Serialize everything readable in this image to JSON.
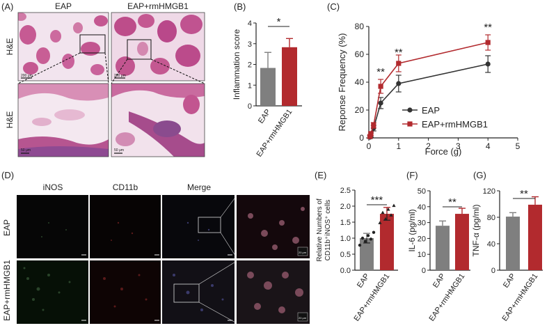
{
  "panel_labels": {
    "a": "(A)",
    "b": "(B)",
    "c": "(C)",
    "d": "(D)",
    "e": "(E)",
    "f": "(F)",
    "g": "(G)"
  },
  "panel_a": {
    "col_headers": [
      "EAP",
      "EAP+rmHMGB1"
    ],
    "row_label_top": "H&E",
    "row_label_bottom": "H&E",
    "scale_top": "200 μm",
    "scale_bottom": "50 μm"
  },
  "panel_d": {
    "col_headers": [
      "iNOS",
      "CD11b",
      "Merge"
    ],
    "row_labels": [
      "EAP",
      "EAP+rmHMGB1"
    ],
    "scale_small": "50μm",
    "scale_zoom": "20 μm"
  },
  "colors": {
    "gray_bar": "#7f7f7f",
    "red_bar": "#b22a2e",
    "eap_line": "#333333",
    "rm_line": "#b22a2e"
  },
  "chart_data": [
    {
      "id": "B",
      "type": "bar",
      "categories": [
        "EAP",
        "EAP+rmHMGB1"
      ],
      "values": [
        1.83,
        2.83
      ],
      "errors": [
        0.75,
        0.42
      ],
      "ylabel": "Inflammation score",
      "ylim": [
        0,
        4
      ],
      "yticks": [
        "0",
        "1",
        "2",
        "3",
        "4"
      ],
      "significance": "*"
    },
    {
      "id": "C",
      "type": "line",
      "xlabel": "Force (g)",
      "ylabel": "Reponse Frequency (%)",
      "xlim": [
        0,
        5
      ],
      "ylim": [
        0,
        80
      ],
      "xticks": [
        "0",
        "1",
        "2",
        "3",
        "4",
        "5"
      ],
      "yticks": [
        "0",
        "20",
        "40",
        "60",
        "80"
      ],
      "x": [
        0.04,
        0.07,
        0.16,
        0.4,
        1.0,
        4.0
      ],
      "series": [
        {
          "name": "EAP",
          "values": [
            0.5,
            2,
            7,
            25,
            39,
            53
          ],
          "errors": [
            1,
            1.5,
            2,
            4,
            6,
            6
          ]
        },
        {
          "name": "EAP+rmHMGB1",
          "values": [
            1,
            3,
            9,
            37,
            53.5,
            68.5
          ],
          "errors": [
            1,
            1.5,
            2,
            5,
            6,
            5.5
          ]
        }
      ],
      "annotations": [
        {
          "x": 0.4,
          "text": "**"
        },
        {
          "x": 1.0,
          "text": "**"
        },
        {
          "x": 4.0,
          "text": "**"
        }
      ],
      "legend": "bottom-right"
    },
    {
      "id": "E",
      "type": "bar",
      "categories": [
        "EAP",
        "EAP+rmHMGB1"
      ],
      "values": [
        1.0,
        1.76
      ],
      "errors": [
        0.15,
        0.2
      ],
      "ylabel_line1": "Relative Numbers of",
      "ylabel_line2": "CD11b⁺iNOS⁺ cells",
      "ylim": [
        0,
        2.5
      ],
      "yticks": [
        "0.0",
        "0.5",
        "1.0",
        "1.5",
        "2.0",
        "2.5"
      ],
      "significance": "***",
      "points": [
        [
          0.78,
          0.9,
          0.97,
          1.0,
          1.08,
          1.18
        ],
        [
          1.48,
          1.6,
          1.72,
          1.8,
          1.9,
          2.02
        ]
      ]
    },
    {
      "id": "F",
      "type": "bar",
      "categories": [
        "EAP",
        "EAP+rmHMGB1"
      ],
      "values": [
        28,
        35.5
      ],
      "errors": [
        3,
        3.5
      ],
      "ylabel": "IL-6 (pg/ml)",
      "ylim": [
        0,
        50
      ],
      "yticks": [
        "0",
        "10",
        "20",
        "30",
        "40",
        "50"
      ],
      "significance": "**"
    },
    {
      "id": "G",
      "type": "bar",
      "categories": [
        "EAP",
        "EAP+rmHMGB1"
      ],
      "values": [
        81,
        99
      ],
      "errors": [
        6,
        12
      ],
      "ylabel": "TNF-α (pg/ml)",
      "ylim": [
        0,
        120
      ],
      "yticks": [
        "0",
        "40",
        "80",
        "120"
      ],
      "significance": "**"
    }
  ]
}
